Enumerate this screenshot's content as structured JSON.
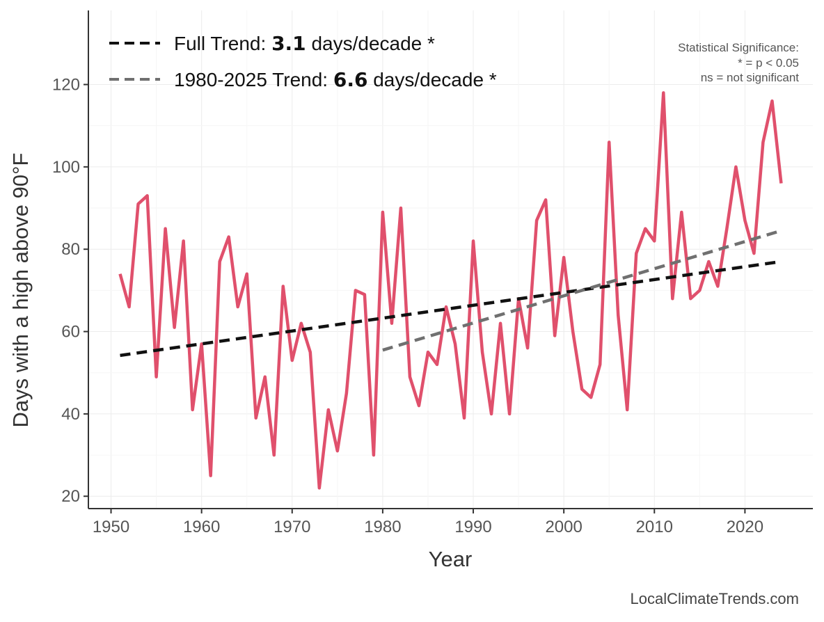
{
  "chart_data": {
    "type": "line",
    "xlabel": "Year",
    "ylabel": "Days with a high above 90°F",
    "xlim": [
      1947.5,
      2027.5
    ],
    "ylim": [
      17,
      138
    ],
    "xticks": [
      1950,
      1960,
      1970,
      1980,
      1990,
      2000,
      2010,
      2020
    ],
    "yticks": [
      20,
      40,
      60,
      80,
      100,
      120
    ],
    "grid": true,
    "legend_position": "top-left",
    "x": [
      1951,
      1952,
      1953,
      1954,
      1955,
      1956,
      1957,
      1958,
      1959,
      1960,
      1961,
      1962,
      1963,
      1964,
      1965,
      1966,
      1967,
      1968,
      1969,
      1970,
      1971,
      1972,
      1973,
      1974,
      1975,
      1976,
      1977,
      1978,
      1979,
      1980,
      1981,
      1982,
      1983,
      1984,
      1985,
      1986,
      1987,
      1988,
      1989,
      1990,
      1991,
      1992,
      1993,
      1994,
      1995,
      1996,
      1997,
      1998,
      1999,
      2000,
      2001,
      2002,
      2003,
      2004,
      2005,
      2006,
      2007,
      2008,
      2009,
      2010,
      2011,
      2012,
      2013,
      2014,
      2015,
      2016,
      2017,
      2018,
      2019,
      2020,
      2021,
      2022,
      2023,
      2024
    ],
    "series": [
      {
        "values": [
          74,
          66,
          91,
          93,
          49,
          85,
          61,
          82,
          41,
          57,
          25,
          77,
          83,
          66,
          74,
          39,
          49,
          30,
          71,
          53,
          62,
          55,
          22,
          41,
          31,
          45,
          70,
          69,
          30,
          89,
          62,
          90,
          49,
          42,
          55,
          52,
          66,
          57,
          39,
          82,
          55,
          40,
          62,
          40,
          68,
          56,
          87,
          92,
          59,
          78,
          60,
          46,
          44,
          52,
          106,
          64,
          41,
          79,
          85,
          82,
          118,
          68,
          89,
          68,
          70,
          77,
          71,
          85,
          100,
          87,
          79,
          106,
          116,
          96
        ],
        "color": "#e0506c"
      }
    ],
    "trends": [
      {
        "label_prefix": "Full Trend: ",
        "value": "3.1",
        "label_suffix": " days/decade *",
        "x": [
          1951,
          2024
        ],
        "y": [
          54.2,
          77.0
        ],
        "color": "#111111"
      },
      {
        "label_prefix": "1980-2025 Trend: ",
        "value": "6.6",
        "label_suffix": " days/decade *",
        "x": [
          1980,
          2024
        ],
        "y": [
          55.5,
          84.5
        ],
        "color": "#707070"
      }
    ],
    "annotation": [
      "Statistical Significance:",
      "* = p < 0.05",
      "ns = not significant"
    ],
    "credit": "LocalClimateTrends.com"
  }
}
